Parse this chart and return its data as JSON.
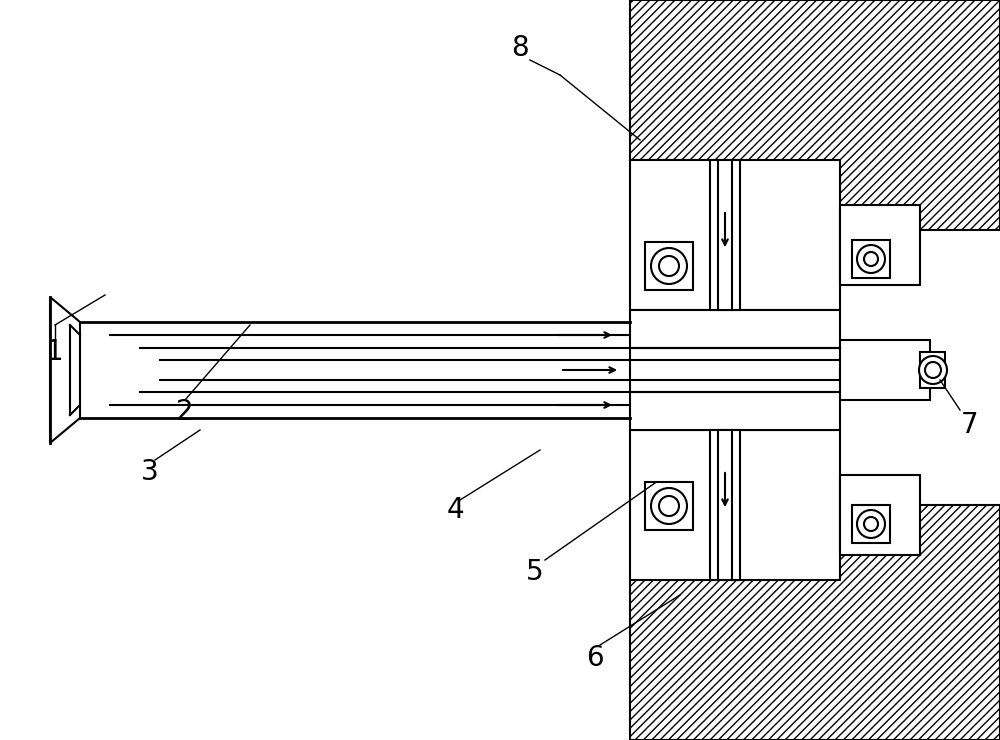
{
  "bg_color": "#ffffff",
  "line_color": "#000000",
  "figsize": [
    10.0,
    7.4
  ],
  "dpi": 100,
  "lw": 1.5
}
